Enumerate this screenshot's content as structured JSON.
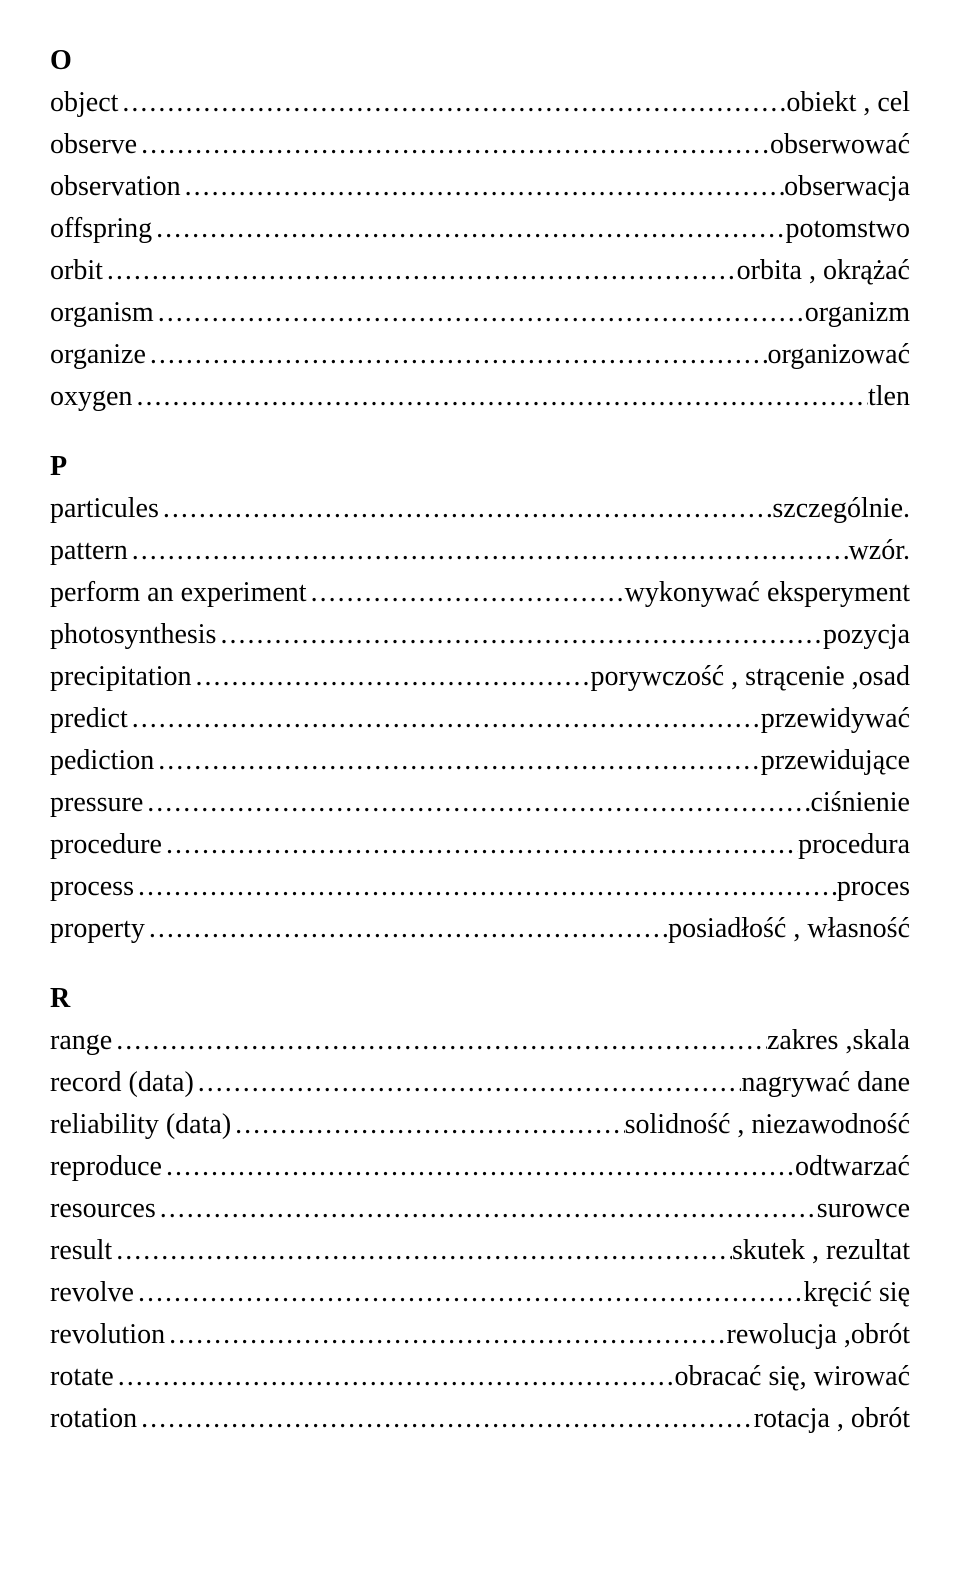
{
  "sections": [
    {
      "letter": "O",
      "entries": [
        {
          "term": "object",
          "def": "obiekt , cel"
        },
        {
          "term": "observe",
          "def": "obserwować"
        },
        {
          "term": "observation",
          "def": "obserwacja"
        },
        {
          "term": "offspring",
          "def": "potomstwo"
        },
        {
          "term": "orbit",
          "def": "orbita , okrążać"
        },
        {
          "term": "organism",
          "def": "organizm"
        },
        {
          "term": "organize",
          "def": "organizować"
        },
        {
          "term": "oxygen",
          "def": "tlen"
        }
      ]
    },
    {
      "letter": "P",
      "entries": [
        {
          "term": "particules",
          "def": "szczególnie."
        },
        {
          "term": "pattern",
          "def": "wzór."
        },
        {
          "term": "perform an experiment",
          "def": "wykonywać  eksperyment"
        },
        {
          "term": "photosynthesis",
          "def": "pozycja"
        },
        {
          "term": "precipitation",
          "def": "porywczość , strącenie ,osad"
        },
        {
          "term": "predict",
          "def": "przewidywać"
        },
        {
          "term": "pediction",
          "def": "przewidujące"
        },
        {
          "term": "pressure",
          "def": "ciśnienie"
        },
        {
          "term": "procedure",
          "def": "procedura"
        },
        {
          "term": "process",
          "def": "proces"
        },
        {
          "term": "property",
          "def": "posiadłość  , własność"
        }
      ]
    },
    {
      "letter": "R",
      "entries": [
        {
          "term": "range",
          "def": "zakres ,skala"
        },
        {
          "term": "record (data)",
          "def": "nagrywać  dane"
        },
        {
          "term": "reliability (data)",
          "def": "solidność ,  niezawodność"
        },
        {
          "term": "reproduce",
          "def": "odtwarzać"
        },
        {
          "term": "resources",
          "def": "surowce"
        },
        {
          "term": "result",
          "def": "skutek , rezultat"
        },
        {
          "term": "revolve",
          "def": "kręcić  się"
        },
        {
          "term": "revolution",
          "def": "rewolucja ,obrót"
        },
        {
          "term": "rotate",
          "def": "obracać  się, wirować"
        },
        {
          "term": "rotation",
          "def": "rotacja , obrót"
        }
      ]
    }
  ]
}
